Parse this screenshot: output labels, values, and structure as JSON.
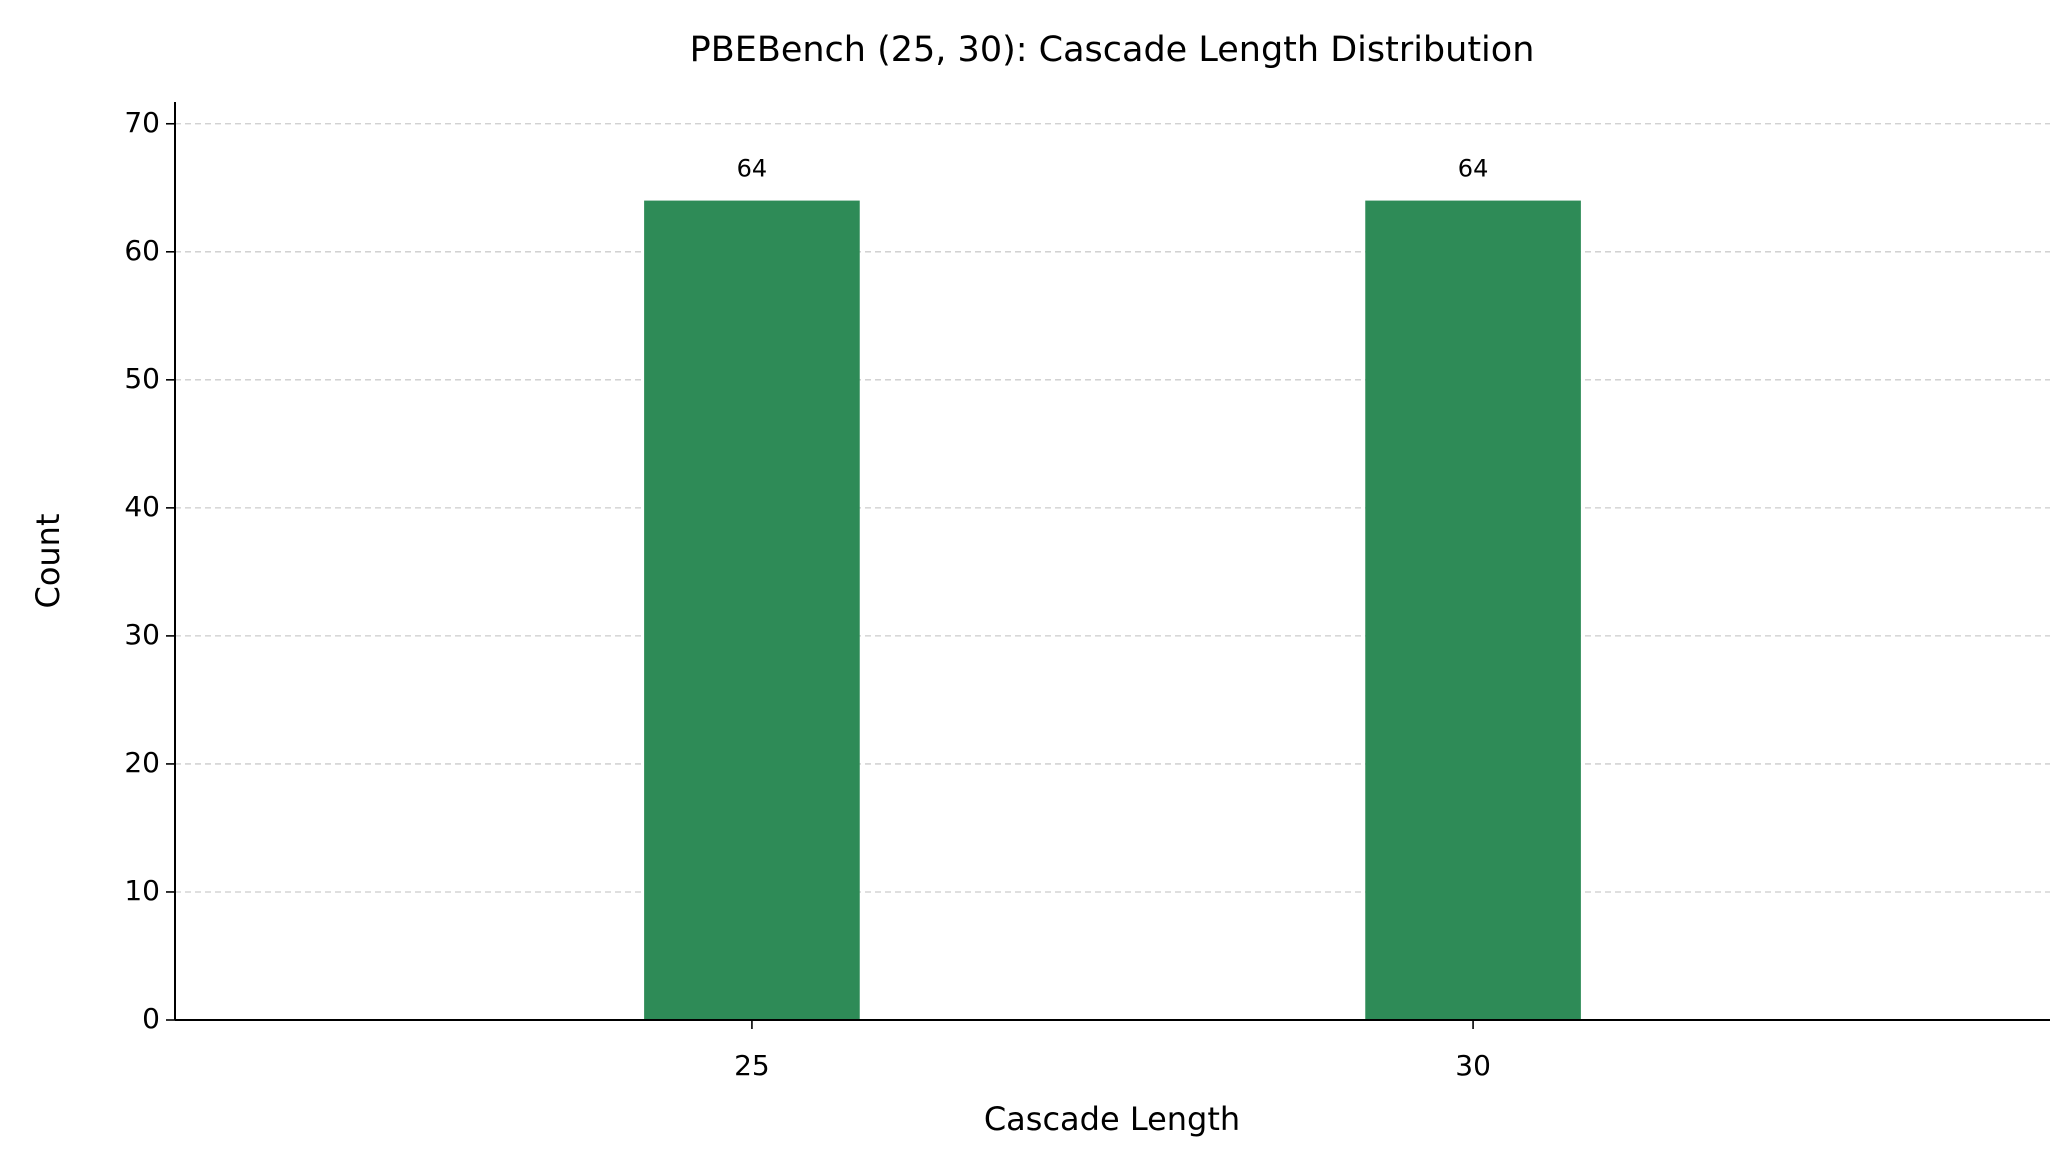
{
  "chart_data": {
    "type": "bar",
    "title": "PBEBench (25, 30): Cascade Length Distribution",
    "x_label": "Cascade Length",
    "y_label": "Count",
    "x": [
      25,
      30
    ],
    "values": [
      64,
      64
    ],
    "color": "#2e8b57",
    "xlim": [
      21,
      34
    ],
    "xticks": [
      25,
      30
    ],
    "ylim": [
      0,
      71.7
    ],
    "yticks": [
      0,
      10,
      20,
      30,
      40,
      50,
      60,
      70
    ],
    "grid": true
  }
}
